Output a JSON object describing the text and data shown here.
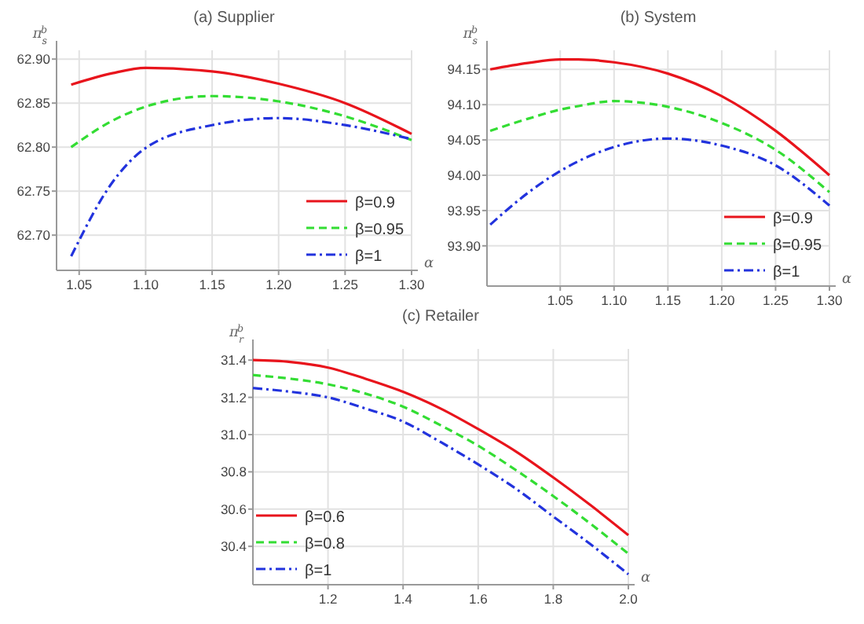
{
  "chart_data": [
    {
      "type": "line",
      "title": "(a) Supplier",
      "xlabel": "α",
      "ylabel": "π$_{s}$$^{b}$",
      "xlim": [
        1.033,
        1.3
      ],
      "xticks": [
        {
          "value": 1.05,
          "label": "1.05"
        },
        {
          "value": 1.1,
          "label": "1.10"
        },
        {
          "value": 1.15,
          "label": "1.15"
        },
        {
          "value": 1.2,
          "label": "1.20"
        },
        {
          "value": 1.25,
          "label": "1.25"
        },
        {
          "value": 1.3,
          "label": "1.30"
        }
      ],
      "ylim": [
        62.66,
        62.91
      ],
      "yticks": [
        {
          "value": 62.7,
          "label": "62.70"
        },
        {
          "value": 62.75,
          "label": "62.75"
        },
        {
          "value": 62.8,
          "label": "62.80"
        },
        {
          "value": 62.85,
          "label": "62.85"
        },
        {
          "value": 62.9,
          "label": "62.90"
        }
      ],
      "grid": true,
      "legend": "bottom right",
      "x": [
        1.044,
        1.075,
        1.1,
        1.15,
        1.2,
        1.25,
        1.3
      ],
      "series": [
        {
          "name": "β=0.9",
          "color": "#e8141c",
          "line_style": "solid",
          "values": [
            62.871,
            62.884,
            62.89,
            62.886,
            62.872,
            62.85,
            62.815
          ]
        },
        {
          "name": "β=0.95",
          "color": "#33dd33",
          "line_style": "dashed",
          "values": [
            62.8,
            62.83,
            62.846,
            62.858,
            62.852,
            62.835,
            62.808
          ]
        },
        {
          "name": "β=1",
          "color": "#2233dd",
          "line_style": "dashdot",
          "values": [
            62.676,
            62.76,
            62.799,
            62.825,
            62.833,
            62.825,
            62.809
          ]
        }
      ]
    },
    {
      "type": "line",
      "title": "(b) System",
      "xlabel": "α",
      "ylabel": "π$_{s}$$^{b}$",
      "xlim": [
        0.982,
        1.3
      ],
      "xticks": [
        {
          "value": 1.05,
          "label": "1.05"
        },
        {
          "value": 1.1,
          "label": "1.10"
        },
        {
          "value": 1.15,
          "label": "1.15"
        },
        {
          "value": 1.2,
          "label": "1.20"
        },
        {
          "value": 1.25,
          "label": "1.25"
        },
        {
          "value": 1.3,
          "label": "1.30"
        }
      ],
      "ylim": [
        93.843,
        94.177
      ],
      "yticks": [
        {
          "value": 93.9,
          "label": "93.90"
        },
        {
          "value": 93.95,
          "label": "93.95"
        },
        {
          "value": 94.0,
          "label": "94.00"
        },
        {
          "value": 94.05,
          "label": "94.05"
        },
        {
          "value": 94.1,
          "label": "94.10"
        },
        {
          "value": 94.15,
          "label": "94.15"
        }
      ],
      "grid": true,
      "legend": "bottom right",
      "x": [
        0.985,
        1.02,
        1.05,
        1.067,
        1.1,
        1.15,
        1.2,
        1.25,
        1.3
      ],
      "series": [
        {
          "name": "β=0.9",
          "color": "#e8141c",
          "line_style": "solid",
          "values": [
            94.15,
            94.159,
            94.164,
            94.164,
            94.16,
            94.144,
            94.112,
            94.063,
            94.0
          ]
        },
        {
          "name": "β=0.95",
          "color": "#33dd33",
          "line_style": "dashed",
          "values": [
            94.063,
            94.08,
            94.093,
            94.098,
            94.105,
            94.097,
            94.074,
            94.036,
            93.976
          ]
        },
        {
          "name": "β=1",
          "color": "#2233dd",
          "line_style": "dashdot",
          "values": [
            93.93,
            93.975,
            94.006,
            94.02,
            94.04,
            94.052,
            94.042,
            94.014,
            93.957
          ]
        }
      ]
    },
    {
      "type": "line",
      "title": "(c) Retailer",
      "xlabel": "α",
      "ylabel": "π$_{r}$$^{b}$",
      "xlim": [
        1.0,
        2.0
      ],
      "xticks": [
        1.2,
        1.4,
        1.6,
        1.8,
        {
          "value": 2.0,
          "label": "2.0"
        }
      ],
      "ylim": [
        30.194,
        31.46
      ],
      "yticks": [
        30.4,
        30.6,
        30.8,
        {
          "value": 31.0,
          "label": "31.0"
        },
        31.2,
        31.4
      ],
      "grid": true,
      "legend": "bottom left",
      "x": [
        1.0,
        1.1,
        1.2,
        1.3,
        1.4,
        1.5,
        1.6,
        1.7,
        1.8,
        1.9,
        2.0
      ],
      "series": [
        {
          "name": "β=0.6",
          "color": "#e8141c",
          "line_style": "solid",
          "values": [
            31.4,
            31.39,
            31.36,
            31.3,
            31.23,
            31.14,
            31.03,
            30.91,
            30.77,
            30.62,
            30.46
          ]
        },
        {
          "name": "β=0.8",
          "color": "#33dd33",
          "line_style": "dashed",
          "values": [
            31.32,
            31.3,
            31.27,
            31.22,
            31.15,
            31.05,
            30.94,
            30.81,
            30.67,
            30.52,
            30.36
          ]
        },
        {
          "name": "β=1",
          "color": "#2233dd",
          "line_style": "dashdot",
          "values": [
            31.25,
            31.23,
            31.2,
            31.14,
            31.07,
            30.96,
            30.84,
            30.71,
            30.56,
            30.41,
            30.25
          ]
        }
      ]
    }
  ]
}
